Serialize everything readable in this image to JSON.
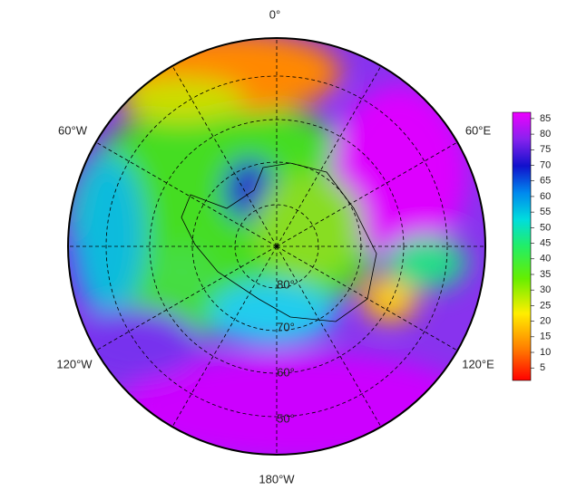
{
  "map": {
    "longitude_labels": [
      "0°",
      "60°E",
      "120°E",
      "180°W",
      "120°W",
      "60°W"
    ],
    "latitude_labels": [
      "80°",
      "70°",
      "60°",
      "50°"
    ],
    "colorbar": {
      "lim": [
        1,
        87
      ],
      "ticks": [
        5,
        10,
        15,
        20,
        25,
        30,
        35,
        40,
        45,
        50,
        55,
        60,
        65,
        70,
        75,
        80,
        85
      ]
    }
  }
}
